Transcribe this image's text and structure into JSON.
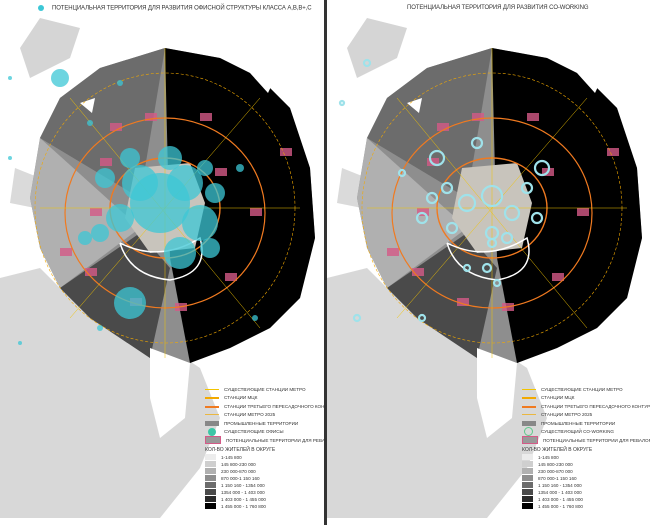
{
  "colors": {
    "offices": "#3cc7d6",
    "metro": "#f2c400",
    "mck": "#f2a900",
    "ttk": "#f07a20",
    "industrial": "#888888",
    "renovation": "#d45a87"
  },
  "left": {
    "title": "ПОТЕНЦИАЛЬНАЯ ТЕРРИТОРИЯ ДЛЯ РАЗВИТИЯ ОФИСНОЙ СТРУКТУРЫ КЛАССА А,В,В+,С",
    "legend": {
      "items": [
        "СУЩЕСТВУЮЩИЕ СТАНЦИИ МЕТРО",
        "СТАНЦИИ МЦК",
        "СТАНЦИИ ТРЕТЬЕГО ПЕРЕСАДОЧНОГО КОНТУРА",
        "СТАНЦИИ МЕТРО 2025",
        "ПРОМЫШЛЕННЫЕ ТЕРРИТОРИИ",
        "СУЩЕСТВУЮЩИЕ ОФИСЫ",
        "ПОТЕНЦИАЛЬНЫЕ ТЕРРИТОРИИ ДЛЯ РЕВАЛОРИЗАЦИИ"
      ],
      "scale_title": "КОЛ-ВО ЖИТЕЛЕЙ В ОКРУГЕ",
      "scale": [
        "1-145 800",
        "145 800-230 000",
        "230 000-870 000",
        "870 000-1 150 160",
        "1 150 160 - 1354 000",
        "1354 000 - 1 403 000",
        "1 403 000 - 1 455 000",
        "1 455 000 - 1 760 800"
      ]
    }
  },
  "right": {
    "title": "ПОТЕНЦИАЛЬНАЯ ТЕРРИТОРИЯ ДЛЯ РАЗВИТИЯ CO-WORKING",
    "legend": {
      "items": [
        "СУЩЕСТВУЮЩИЕ СТАНЦИИ МЕТРО",
        "СТАНЦИИ МЦК",
        "СТАНЦИИ ТРЕТЬЕГО ПЕРЕСАДОЧНОГО КОНТУРА",
        "СТАНЦИИ МЕТРО 2025",
        "ПРОМЫШЛЕННЫЕ ТЕРРИТОРИИ",
        "СУЩЕСТВУЮЩИЙ CO-WORKING",
        "ПОТЕНЦИАЛЬНЫЕ ТЕРРИТОРИИ ДЛЯ РЕВАЛОРИЗАЦИИ"
      ],
      "scale_title": "КОЛ-ВО ЖИТЕЛЕЙ В ОКРУГЕ",
      "scale": [
        "1-145 800",
        "145 800-230 000",
        "230 000-870 000",
        "870 000-1 150 160",
        "1 150 160 - 1354 000",
        "1354 000 - 1 403 000",
        "1 403 000 - 1 455 000",
        "1 455 000 - 1 760 800"
      ]
    }
  },
  "scale_colors": [
    "#ececec",
    "#cfcfcf",
    "#b0b0b0",
    "#8e8e8e",
    "#6c6c6c",
    "#4a4a4a",
    "#2a2a2a",
    "#000000"
  ]
}
